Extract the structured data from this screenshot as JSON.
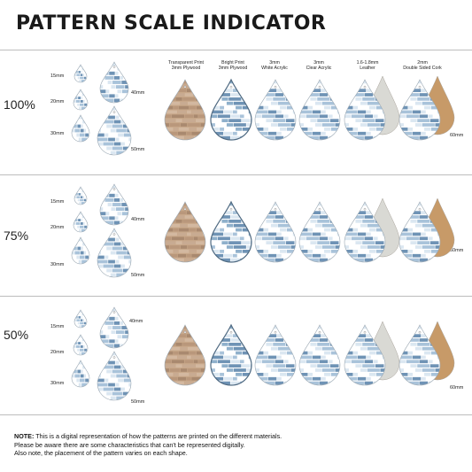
{
  "title": "PATTERN SCALE INDICATOR",
  "materials": [
    {
      "line1": "Transparent Print",
      "line2": "3mm Plywood"
    },
    {
      "line1": "Bright Print",
      "line2": "3mm Plywood"
    },
    {
      "line1": "3mm",
      "line2": "White Acrylic"
    },
    {
      "line1": "3mm",
      "line2": "Clear Acrylic"
    },
    {
      "line1": "1.6-1.8mm",
      "line2": "Leather"
    },
    {
      "line1": "2mm",
      "line2": "Double Sided Cork"
    }
  ],
  "scales": [
    {
      "label": "100%",
      "sizes": {
        "small": "15mm",
        "medium": "20mm",
        "large": "30mm",
        "xl": "40mm",
        "xxl": "50mm",
        "side": "60mm"
      }
    },
    {
      "label": "75%",
      "sizes": {
        "small": "15mm",
        "medium": "20mm",
        "large": "30mm",
        "xl": "40mm",
        "xxl": "50mm",
        "side": "60mm"
      }
    },
    {
      "label": "50%",
      "sizes": {
        "small": "15mm",
        "medium": "20mm",
        "large": "30mm",
        "xl": "40mm",
        "xxl": "50mm",
        "side": "60mm"
      }
    }
  ],
  "note": {
    "bold": "NOTE:",
    "line1": " This is a digital representation of how the patterns are printed on the different materials.",
    "line2": "Please be aware there are some characteristics that can't be represented digitally.",
    "line3": "Also note, the placement of the pattern varies on each shape."
  },
  "colors": {
    "plywood": "#c8a88a",
    "blue_light": "#dbe7f1",
    "blue_mid": "#a9c3da",
    "blue_dark": "#6f93b5",
    "leather": "#d9d9d4",
    "cork": "#c79a68",
    "rule": "#bdbdbd"
  }
}
